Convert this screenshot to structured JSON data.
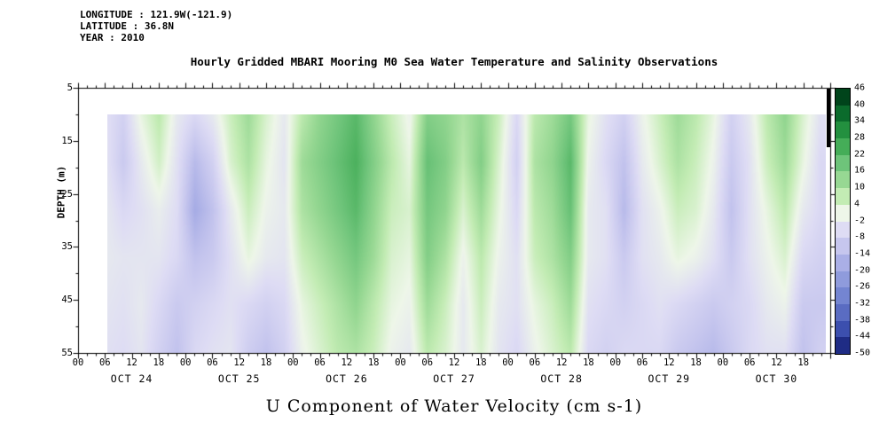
{
  "header": {
    "longitude": "LONGITUDE : 121.9W(-121.9)",
    "latitude": "LATITUDE : 36.8N",
    "year": "YEAR : 2010",
    "title": "Hourly Gridded MBARI Mooring M0 Sea Water Temperature and Salinity Observations"
  },
  "axes": {
    "y_label": "DEPTH (m)",
    "y_tick_depths": [
      5,
      15,
      25,
      35,
      45,
      55
    ],
    "y_tick_labels": [
      "5",
      "15",
      "25",
      "35",
      "45",
      "55"
    ],
    "x_hour_tick_labels": [
      "00",
      "06",
      "12",
      "18"
    ],
    "x_day_labels": [
      "OCT 24",
      "OCT 25",
      "OCT 26",
      "OCT 27",
      "OCT 28",
      "OCT 29",
      "OCT 30"
    ],
    "x_title": "U Component of Water Velocity (cm s-1)"
  },
  "colorbar": {
    "tick_labels": [
      "46",
      "40",
      "34",
      "28",
      "22",
      "16",
      "10",
      "4",
      "-2",
      "-8",
      "-14",
      "-20",
      "-26",
      "-32",
      "-38",
      "-44",
      "-50"
    ],
    "levels": [
      46,
      40,
      34,
      28,
      22,
      16,
      10,
      4,
      -2,
      -8,
      -14,
      -20,
      -26,
      -32,
      -38,
      -44,
      -50
    ],
    "colors": [
      "#00441b",
      "#0b6b2c",
      "#23903f",
      "#45ad58",
      "#6ec47a",
      "#97d893",
      "#c3ecb4",
      "#eef6e9",
      "#dedcf4",
      "#c6c6ee",
      "#aaafe6",
      "#8f9bdc",
      "#7485d1",
      "#5a6cc2",
      "#3c4fae",
      "#1f2c85"
    ]
  },
  "chart_data": {
    "type": "heatmap",
    "title": "Hourly Gridded MBARI Mooring M0 Sea Water Temperature and Salinity Observations",
    "variable": "U Component of Water Velocity (cm s-1)",
    "units": "cm s-1",
    "ylabel": "DEPTH (m)",
    "y_range": [
      5,
      55
    ],
    "x_range": "OCT 24 00:00 - OCT 31 00:00 (hours since OCT 24 00:00, 2010)",
    "colorbar_range": [
      -50,
      46
    ],
    "colorbar_step": 6,
    "values_format": "columns over time (x_hours) x rows over depth (depths), U velocity in cm/s, estimated from shading",
    "x_hours": [
      6,
      10,
      14,
      18,
      22,
      26,
      30,
      34,
      38,
      42,
      46,
      50,
      54,
      58,
      62,
      66,
      70,
      74,
      78,
      82,
      86,
      90,
      94,
      98,
      102,
      106,
      110,
      114,
      118,
      122,
      126,
      130,
      134,
      138,
      142,
      146,
      150,
      154,
      158,
      162,
      166
    ],
    "depths": [
      10,
      19,
      28,
      37,
      46,
      55
    ],
    "values": [
      [
        -4,
        -3,
        -2,
        -2,
        -3,
        -4
      ],
      [
        -8,
        -10,
        -6,
        -3,
        -4,
        -5
      ],
      [
        2,
        -2,
        -4,
        -3,
        -2,
        -3
      ],
      [
        8,
        5,
        -1,
        -3,
        -6,
        -8
      ],
      [
        -2,
        -4,
        -5,
        -6,
        -10,
        -12
      ],
      [
        -6,
        -14,
        -18,
        -12,
        -8,
        -6
      ],
      [
        -2,
        -8,
        -12,
        -10,
        -6,
        -4
      ],
      [
        6,
        4,
        -2,
        -4,
        -4,
        -3
      ],
      [
        12,
        10,
        6,
        2,
        -6,
        -9
      ],
      [
        4,
        2,
        0,
        -2,
        -8,
        -12
      ],
      [
        -2,
        -3,
        -2,
        -3,
        -6,
        -8
      ],
      [
        8,
        12,
        10,
        6,
        2,
        0
      ],
      [
        14,
        16,
        14,
        10,
        6,
        4
      ],
      [
        18,
        20,
        18,
        14,
        10,
        8
      ],
      [
        22,
        24,
        22,
        18,
        14,
        10
      ],
      [
        14,
        16,
        14,
        12,
        8,
        6
      ],
      [
        6,
        8,
        6,
        4,
        2,
        0
      ],
      [
        0,
        2,
        4,
        2,
        0,
        -2
      ],
      [
        16,
        20,
        18,
        16,
        12,
        8
      ],
      [
        14,
        16,
        14,
        10,
        6,
        4
      ],
      [
        10,
        8,
        4,
        0,
        -2,
        -2
      ],
      [
        14,
        16,
        12,
        8,
        6,
        4
      ],
      [
        6,
        4,
        2,
        0,
        -2,
        -3
      ],
      [
        -6,
        -8,
        -6,
        -4,
        -4,
        -6
      ],
      [
        8,
        10,
        8,
        6,
        2,
        0
      ],
      [
        12,
        14,
        12,
        10,
        6,
        4
      ],
      [
        18,
        22,
        20,
        16,
        12,
        8
      ],
      [
        2,
        0,
        -2,
        -2,
        -4,
        -6
      ],
      [
        -4,
        -6,
        -4,
        -4,
        -6,
        -8
      ],
      [
        -8,
        -12,
        -14,
        -10,
        -8,
        -6
      ],
      [
        0,
        -2,
        -4,
        -4,
        -6,
        -6
      ],
      [
        6,
        4,
        0,
        -2,
        -4,
        -6
      ],
      [
        12,
        10,
        6,
        2,
        -6,
        -10
      ],
      [
        8,
        6,
        4,
        0,
        -8,
        -12
      ],
      [
        2,
        0,
        -2,
        -4,
        -10,
        -14
      ],
      [
        -8,
        -10,
        -12,
        -10,
        -8,
        -10
      ],
      [
        -2,
        -4,
        -4,
        -4,
        -6,
        -6
      ],
      [
        8,
        6,
        2,
        0,
        -2,
        -4
      ],
      [
        14,
        12,
        8,
        4,
        0,
        -4
      ],
      [
        4,
        2,
        -2,
        -6,
        -10,
        -12
      ],
      [
        -4,
        -6,
        -6,
        -8,
        -10,
        -8
      ]
    ]
  }
}
